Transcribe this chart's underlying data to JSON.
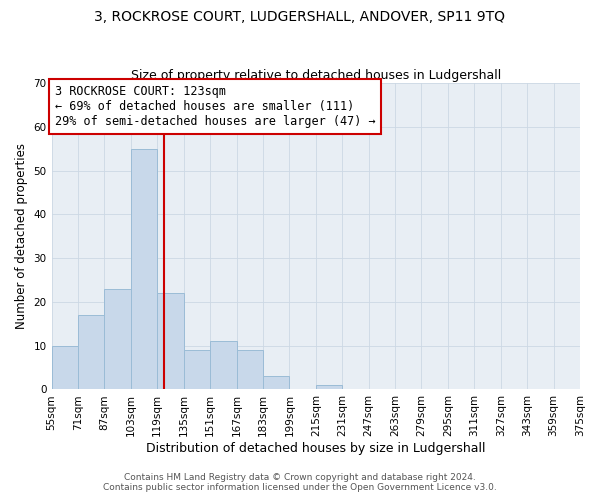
{
  "title": "3, ROCKROSE COURT, LUDGERSHALL, ANDOVER, SP11 9TQ",
  "subtitle": "Size of property relative to detached houses in Ludgershall",
  "xlabel": "Distribution of detached houses by size in Ludgershall",
  "ylabel": "Number of detached properties",
  "bin_edges": [
    55,
    71,
    87,
    103,
    119,
    135,
    151,
    167,
    183,
    199,
    215,
    231,
    247,
    263,
    279,
    295,
    311,
    327,
    343,
    359,
    375
  ],
  "bin_counts": [
    10,
    17,
    23,
    55,
    22,
    9,
    11,
    9,
    3,
    0,
    1,
    0,
    0,
    0,
    0,
    0,
    0,
    0,
    0,
    0
  ],
  "bar_color": "#c8d8ea",
  "bar_edgecolor": "#9bbcd6",
  "property_value": 123,
  "vline_color": "#cc0000",
  "annotation_text": "3 ROCKROSE COURT: 123sqm\n← 69% of detached houses are smaller (111)\n29% of semi-detached houses are larger (47) →",
  "annotation_box_edgecolor": "#cc0000",
  "annotation_box_facecolor": "#ffffff",
  "ylim": [
    0,
    70
  ],
  "yticks": [
    0,
    10,
    20,
    30,
    40,
    50,
    60,
    70
  ],
  "footer_line1": "Contains HM Land Registry data © Crown copyright and database right 2024.",
  "footer_line2": "Contains public sector information licensed under the Open Government Licence v3.0.",
  "title_fontsize": 10,
  "subtitle_fontsize": 9,
  "xlabel_fontsize": 9,
  "ylabel_fontsize": 8.5,
  "tick_fontsize": 7.5,
  "annotation_fontsize": 8.5,
  "footer_fontsize": 6.5,
  "grid_color": "#ccd8e4",
  "background_color": "#ffffff",
  "ax_background_color": "#e8eef4"
}
